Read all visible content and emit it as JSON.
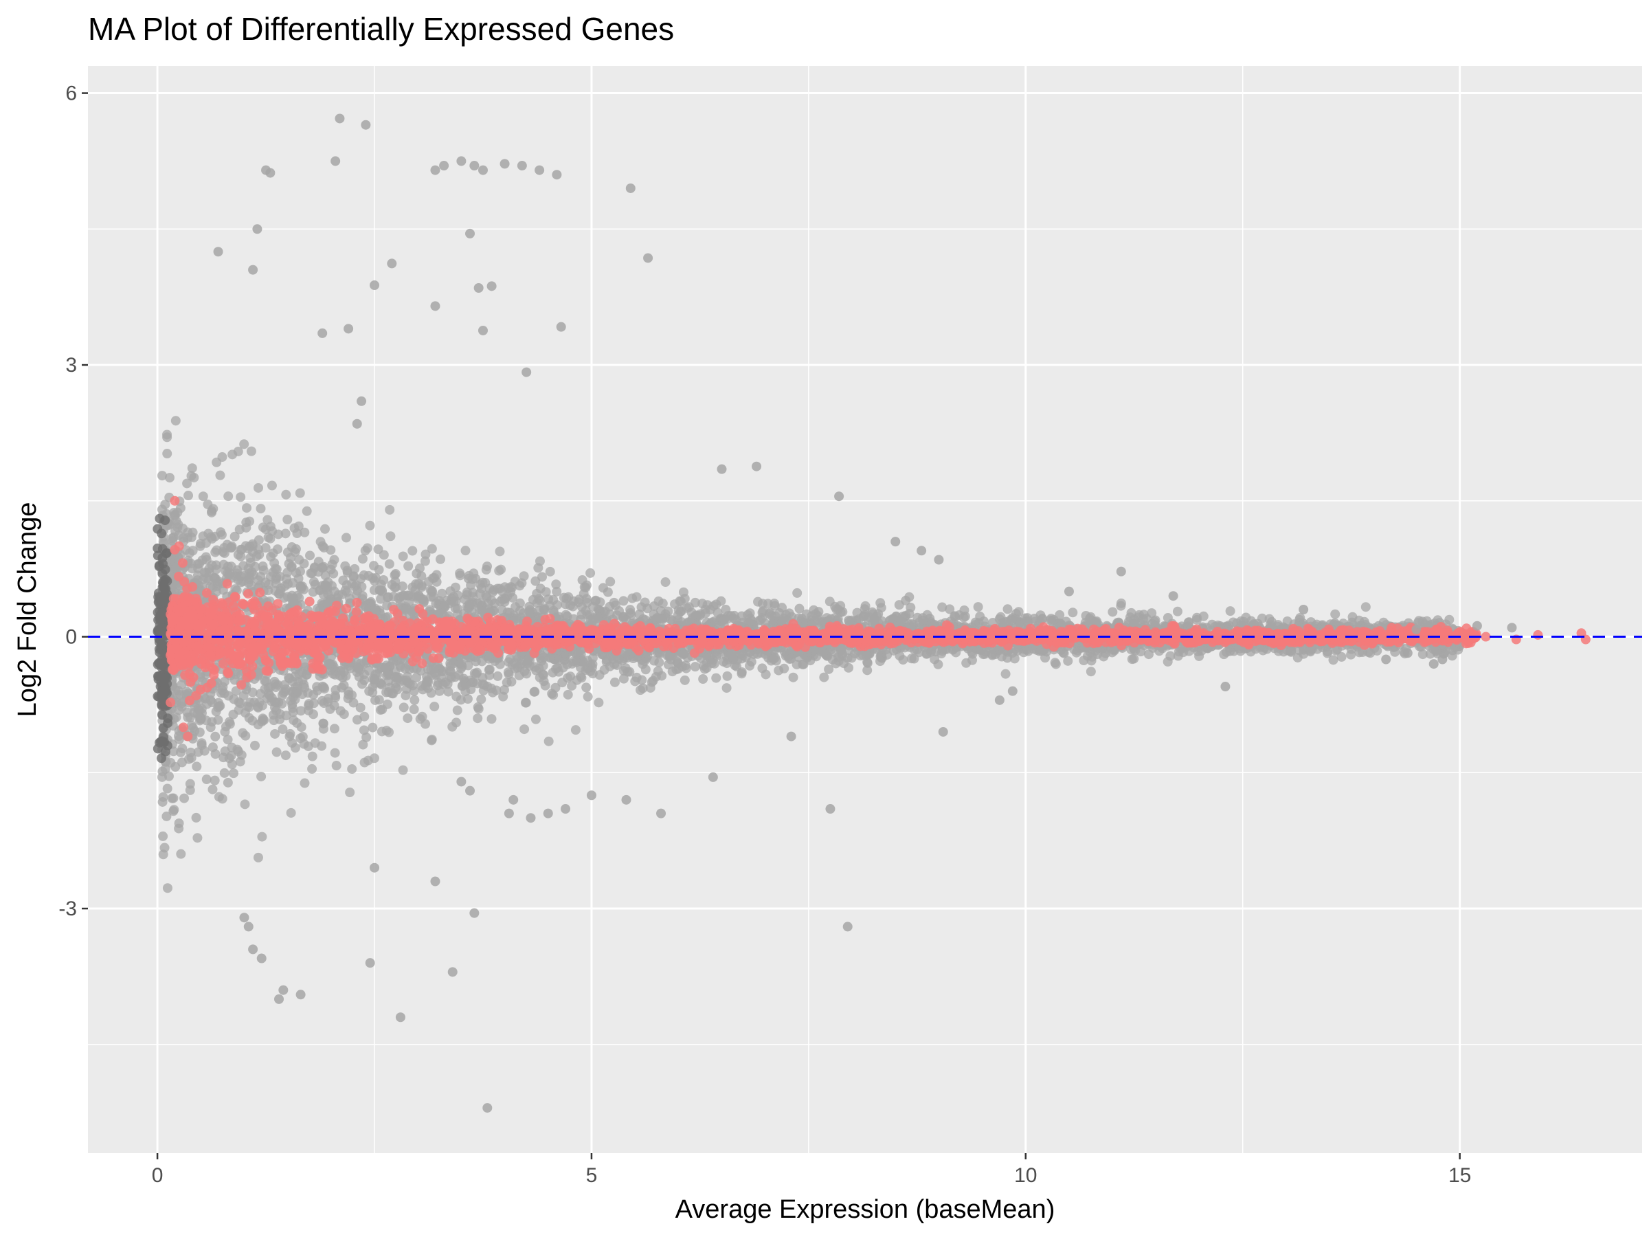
{
  "chart_data": {
    "type": "scatter",
    "title": "MA Plot of Differentially Expressed Genes",
    "xlabel": "Average Expression (baseMean)",
    "ylabel": "Log2 Fold Change",
    "xlim": [
      -0.8,
      17.1
    ],
    "ylim": [
      -5.7,
      6.3
    ],
    "x_ticks": [
      0,
      5,
      10,
      15
    ],
    "x_tick_labels": [
      "0",
      "5",
      "10",
      "15"
    ],
    "y_ticks": [
      -3,
      0,
      3,
      6
    ],
    "y_tick_labels": [
      "-3",
      "0",
      "3",
      "6"
    ],
    "grid": true,
    "legend": "none",
    "reference_line": {
      "y": 0,
      "style": "dashed",
      "color": "#0000ff"
    },
    "colors": {
      "panel_background": "#ebebeb",
      "grid": "#ffffff",
      "not_significant": "#a6a6a6",
      "significant": "#f47a7a"
    },
    "series": [
      {
        "color": "#a6a6a6",
        "x": [
          2.1,
          2.4,
          1.3,
          1.25,
          2.05,
          3.2,
          3.3,
          3.5,
          3.65,
          3.75,
          4.0,
          4.2,
          4.4,
          4.6,
          5.45,
          5.65,
          3.6,
          3.7,
          3.85,
          2.7,
          3.2,
          4.65,
          3.75,
          4.25,
          2.5,
          1.1,
          1.15,
          0.7,
          2.2,
          1.9,
          2.3,
          2.35,
          6.5,
          6.9,
          7.85,
          8.5,
          8.8,
          9.0,
          10.5,
          11.1,
          11.7,
          13.2,
          14.5,
          15.2,
          15.6,
          14.4,
          14.8,
          2.45,
          2.8,
          3.8,
          3.4,
          3.65,
          1.45,
          1.4,
          1.65,
          1.1,
          1.2,
          2.5,
          3.2,
          4.05,
          4.1,
          4.3,
          4.5,
          4.7,
          5.0,
          5.4,
          5.8,
          6.4,
          7.3,
          7.75,
          7.95,
          9.05,
          9.7,
          9.85,
          12.3,
          14.15,
          14.7,
          3.5,
          3.6,
          1.0,
          1.05
        ],
        "y": [
          5.72,
          5.65,
          5.12,
          5.15,
          5.25,
          5.15,
          5.2,
          5.25,
          5.2,
          5.15,
          5.22,
          5.2,
          5.15,
          5.1,
          4.95,
          4.18,
          4.45,
          3.85,
          3.87,
          4.12,
          3.65,
          3.42,
          3.38,
          2.92,
          3.88,
          4.05,
          4.5,
          4.25,
          3.4,
          3.35,
          2.35,
          2.6,
          1.85,
          1.88,
          1.55,
          1.05,
          0.95,
          0.85,
          0.5,
          0.72,
          0.45,
          0.3,
          0.08,
          0.12,
          0.1,
          -0.18,
          -0.25,
          -3.6,
          -4.2,
          -5.2,
          -3.7,
          -3.05,
          -3.9,
          -4.0,
          -3.95,
          -3.45,
          -3.55,
          -2.55,
          -2.7,
          -1.95,
          -1.8,
          -2.0,
          -1.95,
          -1.9,
          -1.75,
          -1.8,
          -1.95,
          -1.55,
          -1.1,
          -1.9,
          -3.2,
          -1.05,
          -0.7,
          -0.6,
          -0.55,
          -0.25,
          -0.3,
          -1.6,
          -1.7,
          -3.1,
          -3.2
        ]
      },
      {
        "color": "#f47a7a",
        "x": [
          0.2,
          0.25,
          0.3,
          0.35,
          0.5,
          0.9,
          1.4,
          2.0,
          2.6,
          3.3,
          4.0,
          5.0,
          6.0,
          7.0,
          8.0,
          9.0,
          10.0,
          11.0,
          12.0,
          13.0,
          13.9,
          14.2,
          14.6,
          14.95,
          15.3,
          15.65,
          15.9,
          16.4,
          16.45
        ],
        "y": [
          1.5,
          1.0,
          -1.0,
          -1.1,
          0.3,
          -0.25,
          0.2,
          0.05,
          -0.1,
          0.1,
          -0.05,
          0.08,
          -0.06,
          0.05,
          -0.04,
          0.06,
          -0.03,
          0.04,
          -0.05,
          0.03,
          0.02,
          -0.05,
          0.05,
          -0.02,
          0.0,
          -0.03,
          0.02,
          0.04,
          -0.03
        ]
      }
    ],
    "dense_clouds": [
      {
        "color": "#a6a6a6",
        "x_range": [
          0.05,
          15.0
        ],
        "spread": "log2 fold change spread about ±1.5 at low expression, narrowing toward 0 at high expression"
      },
      {
        "color": "#f47a7a",
        "x_range": [
          0.05,
          15.5
        ],
        "spread": "significant genes clustered tightly around 0"
      }
    ]
  }
}
